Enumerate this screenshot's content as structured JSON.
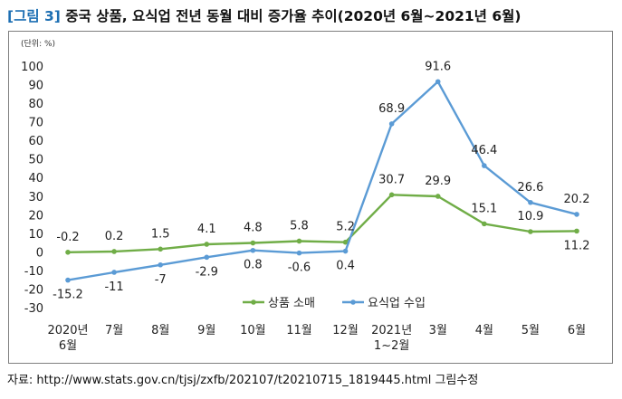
{
  "title": {
    "tag": "[그림 3]",
    "text": "중국 상품, 요식업 전년 동월 대비 증가율 추이(2020년 6월~2021년 6월)"
  },
  "source": "자료: http://www.stats.gov.cn/tjsj/zxfb/202107/t20210715_1819445.html 그림수정",
  "colors": {
    "goods": "#70ad47",
    "catering": "#5b9bd5"
  },
  "chart_data": {
    "type": "line",
    "title": "중국 상품, 요식업 전년 동월 대비 증가율 추이(2020년 6월~2021년 6월)",
    "unit_label": "(단위: %)",
    "categories": [
      [
        "2020년",
        "6월"
      ],
      [
        "7월"
      ],
      [
        "8월"
      ],
      [
        "9월"
      ],
      [
        "10월"
      ],
      [
        "11월"
      ],
      [
        "12월"
      ],
      [
        "2021년",
        "1~2월"
      ],
      [
        "3월"
      ],
      [
        "4월"
      ],
      [
        "5월"
      ],
      [
        "6월"
      ]
    ],
    "ylim": [
      -30,
      100
    ],
    "yticks": [
      100,
      90,
      80,
      70,
      60,
      50,
      40,
      30,
      20,
      10,
      0,
      -10,
      -20,
      -30
    ],
    "grid": false,
    "legend": "bottom-center",
    "series": [
      {
        "name": "상품 소매",
        "color": "#70ad47",
        "values": [
          -0.2,
          0.2,
          1.5,
          4.1,
          4.8,
          5.8,
          5.2,
          30.7,
          29.9,
          15.1,
          10.9,
          11.2
        ],
        "labels": [
          "-0.2",
          "0.2",
          "1.5",
          "4.1",
          "4.8",
          "5.8",
          "5.2",
          "30.7",
          "29.9",
          "15.1",
          "10.9",
          "11.2"
        ],
        "label_side": [
          "above",
          "above",
          "above",
          "above",
          "above",
          "above",
          "above",
          "above",
          "above",
          "above",
          "above",
          "below"
        ]
      },
      {
        "name": "요식업 수입",
        "color": "#5b9bd5",
        "values": [
          -15.2,
          -11,
          -7,
          -2.9,
          0.8,
          -0.6,
          0.4,
          68.9,
          91.6,
          46.4,
          26.6,
          20.2
        ],
        "labels": [
          "-15.2",
          "-11",
          "-7",
          "-2.9",
          "0.8",
          "-0.6",
          "0.4",
          "68.9",
          "91.6",
          "46.4",
          "26.6",
          "20.2"
        ],
        "label_side": [
          "below",
          "below",
          "below",
          "below",
          "below",
          "below",
          "below",
          "above",
          "above",
          "above",
          "above",
          "above"
        ]
      }
    ]
  }
}
